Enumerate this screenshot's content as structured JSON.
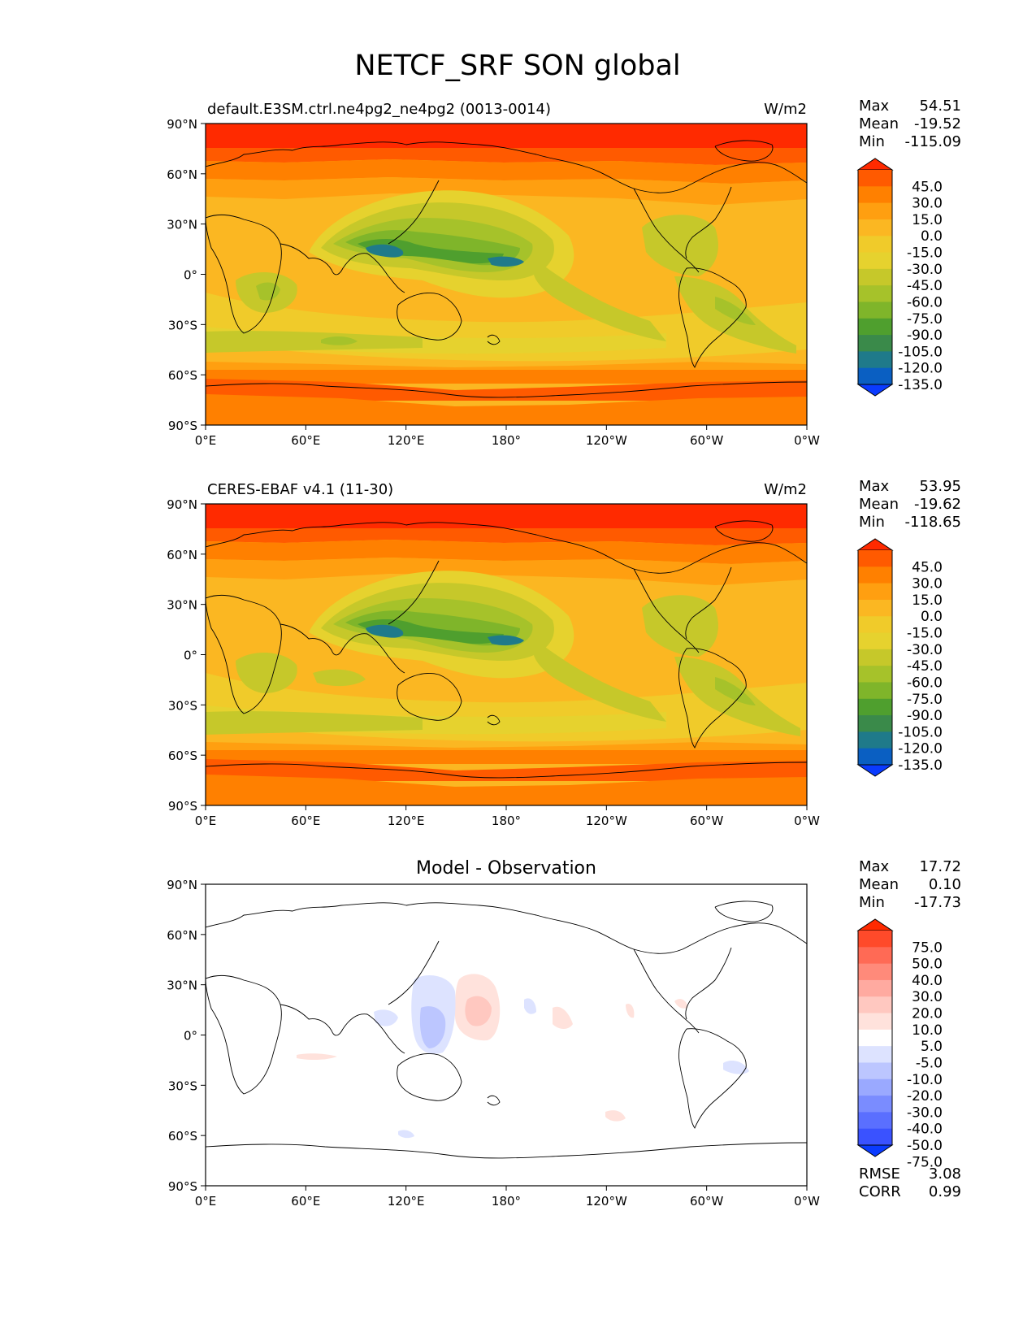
{
  "title": "NETCF_SRF SON global",
  "panels": [
    {
      "label": "default.E3SM.ctrl.ne4pg2_ne4pg2 (0013-0014)",
      "units": "W/m2",
      "stats": [
        {
          "name": "Max",
          "value": "54.51"
        },
        {
          "name": "Mean",
          "value": "-19.52"
        },
        {
          "name": "Min",
          "value": "-115.09"
        }
      ],
      "colorbar_ticks": [
        "45.0",
        "30.0",
        "15.0",
        "0.0",
        "-15.0",
        "-30.0",
        "-45.0",
        "-60.0",
        "-75.0",
        "-90.0",
        "-105.0",
        "-120.0",
        "-135.0"
      ]
    },
    {
      "label": "CERES-EBAF v4.1 (11-30)",
      "units": "W/m2",
      "stats": [
        {
          "name": "Max",
          "value": "53.95"
        },
        {
          "name": "Mean",
          "value": "-19.62"
        },
        {
          "name": "Min",
          "value": "-118.65"
        }
      ],
      "colorbar_ticks": [
        "45.0",
        "30.0",
        "15.0",
        "0.0",
        "-15.0",
        "-30.0",
        "-45.0",
        "-60.0",
        "-75.0",
        "-90.0",
        "-105.0",
        "-120.0",
        "-135.0"
      ]
    },
    {
      "label": "Model - Observation",
      "units": "",
      "stats": [
        {
          "name": "Max",
          "value": "17.72"
        },
        {
          "name": "Mean",
          "value": "0.10"
        },
        {
          "name": "Min",
          "value": "-17.73"
        }
      ],
      "colorbar_ticks": [
        "75.0",
        "50.0",
        "40.0",
        "30.0",
        "20.0",
        "10.0",
        "5.0",
        "-5.0",
        "-10.0",
        "-20.0",
        "-30.0",
        "-40.0",
        "-50.0",
        "-75.0"
      ],
      "extra_stats": [
        {
          "name": "RMSE",
          "value": "3.08"
        },
        {
          "name": "CORR",
          "value": "0.99"
        }
      ]
    }
  ],
  "axes": {
    "lat_ticks": [
      "90°N",
      "60°N",
      "30°N",
      "0°",
      "30°S",
      "60°S",
      "90°S"
    ],
    "lon_ticks": [
      "0°E",
      "60°E",
      "120°E",
      "180°",
      "120°W",
      "60°W",
      "0°W"
    ]
  },
  "colors": {
    "field_scale": [
      "#ff2a00",
      "#ff5a00",
      "#ff8000",
      "#ff9f10",
      "#fbb722",
      "#f0cb2a",
      "#e6d22e",
      "#c6c82a",
      "#a6c22a",
      "#7fb52a",
      "#4f9f2e",
      "#3a8a4a",
      "#1f7a8a",
      "#0a5fc2",
      "#0a3bff"
    ],
    "diff_scale": [
      "#ff2a00",
      "#ff4a2a",
      "#ff6a55",
      "#ff8a7a",
      "#ffaaa0",
      "#ffc8c0",
      "#ffe2dc",
      "#ffffff",
      "#dde3ff",
      "#bcc6ff",
      "#9aa9ff",
      "#7a8cff",
      "#5a6fff",
      "#3a52ff",
      "#0a3bff"
    ],
    "coastline": "#000000"
  }
}
